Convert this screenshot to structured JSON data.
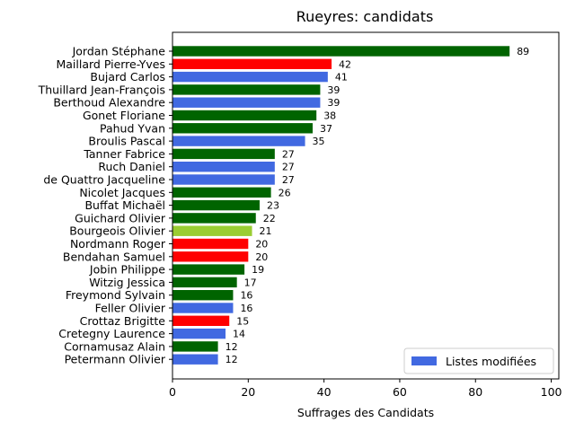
{
  "chart_data": {
    "type": "bar",
    "orientation": "horizontal",
    "title": "Rueyres: candidats",
    "xlabel": "Suffrages des Candidats",
    "ylabel": "",
    "xlim": [
      0,
      102
    ],
    "xticks": [
      0,
      20,
      40,
      60,
      80,
      100
    ],
    "grid": false,
    "legend": {
      "placement": "lower-right",
      "entries": [
        {
          "label": "Listes modifiées",
          "color": "#4169e1"
        }
      ]
    },
    "categories": [
      "Jordan Stéphane",
      "Maillard Pierre-Yves",
      "Bujard Carlos",
      "Thuillard Jean-François",
      "Berthoud Alexandre",
      "Gonet Floriane",
      "Pahud Yvan",
      "Broulis Pascal",
      "Tanner Fabrice",
      "Ruch Daniel",
      "de Quattro Jacqueline",
      "Nicolet Jacques",
      "Buffat Michaël",
      "Guichard Olivier",
      "Bourgeois Olivier",
      "Nordmann Roger",
      "Bendahan Samuel",
      "Jobin Philippe",
      "Witzig Jessica",
      "Freymond Sylvain",
      "Feller Olivier",
      "Crottaz Brigitte",
      "Cretegny Laurence",
      "Cornamusaz Alain",
      "Petermann Olivier"
    ],
    "values": [
      89,
      42,
      41,
      39,
      39,
      38,
      37,
      35,
      27,
      27,
      27,
      26,
      23,
      22,
      21,
      20,
      20,
      19,
      17,
      16,
      16,
      15,
      14,
      12,
      12
    ],
    "value_labels": [
      "89",
      "42",
      "41",
      "39",
      "39",
      "38",
      "37",
      "35",
      "27",
      "27",
      "27",
      "26",
      "23",
      "22",
      "21",
      "20",
      "20",
      "19",
      "17",
      "16",
      "16",
      "15",
      "14",
      "12",
      "12"
    ],
    "colors": [
      "#006400",
      "#ff0000",
      "#4169e1",
      "#006400",
      "#4169e1",
      "#006400",
      "#006400",
      "#4169e1",
      "#006400",
      "#4169e1",
      "#4169e1",
      "#006400",
      "#006400",
      "#006400",
      "#9acd32",
      "#ff0000",
      "#ff0000",
      "#006400",
      "#006400",
      "#006400",
      "#4169e1",
      "#ff0000",
      "#4169e1",
      "#006400",
      "#4169e1"
    ]
  }
}
